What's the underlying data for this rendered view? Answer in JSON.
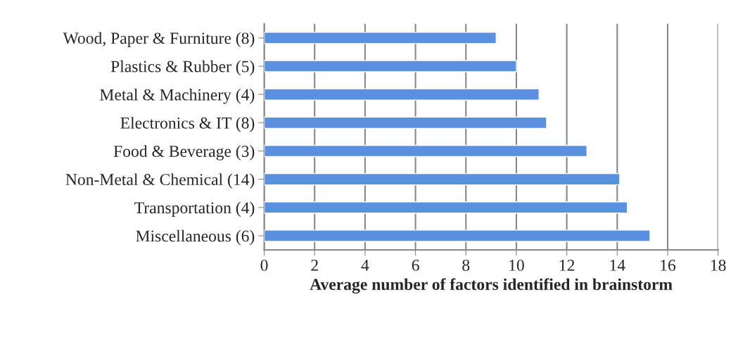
{
  "chart_data": {
    "type": "bar",
    "orientation": "horizontal",
    "categories": [
      "Wood, Paper & Furniture (8)",
      "Plastics & Rubber (5)",
      "Metal & Machinery (4)",
      "Electronics & IT (8)",
      "Food & Beverage (3)",
      "Non-Metal & Chemical (14)",
      "Transportation (4)",
      "Miscellaneous (6)"
    ],
    "values": [
      9.2,
      10.0,
      10.9,
      11.2,
      12.8,
      14.1,
      14.4,
      15.3
    ],
    "color": "#5b8fe0",
    "xlabel": "Average number of factors identified in brainstorm",
    "xlim": [
      0,
      18
    ],
    "xticks": [
      0,
      2,
      4,
      6,
      8,
      10,
      12,
      14,
      16,
      18
    ],
    "grid": "x",
    "legend": false
  }
}
